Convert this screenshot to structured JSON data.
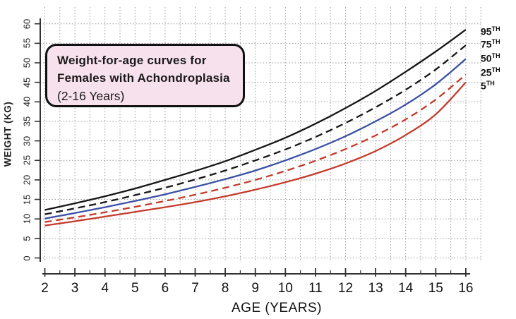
{
  "title_box": {
    "line1": "Weight-for-age curves for",
    "line2": "Females with Achondroplasia",
    "line3": "(2-16 Years)"
  },
  "colors": {
    "background": "#ffffff",
    "title_box_fill": "#f7e1ec",
    "title_box_border": "#111111",
    "grid": "#9a9a9a",
    "axis": "#333333",
    "black_curve": "#161616",
    "blue_curve": "#3a50a5",
    "red_curve": "#c43a2b",
    "text": "#1a1a1a"
  },
  "chart_data": {
    "type": "line",
    "title": "Weight-for-age curves for Females with Achondroplasia (2-16 Years)",
    "xlabel": "AGE (YEARS)",
    "ylabel": "WEIGHT (KG)",
    "xlim": [
      2,
      16
    ],
    "ylim": [
      0,
      60
    ],
    "x_ticks": [
      2,
      3,
      4,
      5,
      6,
      7,
      8,
      9,
      10,
      11,
      12,
      13,
      14,
      15,
      16
    ],
    "y_ticks": [
      0,
      5,
      10,
      15,
      20,
      25,
      30,
      35,
      40,
      45,
      50,
      55,
      60
    ],
    "grid": "dotted; vertical every 0.5 year, horizontal every 5 kg",
    "legend_position": "labels at right end of curves",
    "x": [
      2,
      3,
      4,
      5,
      6,
      7,
      8,
      9,
      10,
      11,
      12,
      13,
      14,
      15,
      16
    ],
    "series": [
      {
        "name": "95th percentile",
        "label": "95",
        "label_suffix": "TH",
        "color": "#161616",
        "style": "solid",
        "values": [
          12.3,
          14.0,
          15.8,
          17.8,
          20.0,
          22.3,
          24.8,
          27.7,
          30.8,
          34.4,
          38.4,
          42.8,
          47.7,
          52.9,
          58.5
        ]
      },
      {
        "name": "75th percentile",
        "label": "75",
        "label_suffix": "TH",
        "color": "#161616",
        "style": "dashed",
        "values": [
          11.2,
          12.7,
          14.3,
          16.1,
          18.0,
          20.1,
          22.4,
          25.0,
          27.8,
          31.0,
          34.6,
          38.6,
          43.1,
          48.3,
          54.5
        ]
      },
      {
        "name": "50th percentile",
        "label": "50",
        "label_suffix": "TH",
        "color": "#3a50a5",
        "style": "solid",
        "values": [
          10.1,
          11.5,
          13.0,
          14.6,
          16.3,
          18.2,
          20.2,
          22.4,
          25.0,
          27.9,
          31.2,
          35.0,
          39.3,
          44.5,
          51.0
        ]
      },
      {
        "name": "25th percentile",
        "label": "25",
        "label_suffix": "TH",
        "color": "#c43a2b",
        "style": "dashed",
        "values": [
          9.2,
          10.4,
          11.7,
          13.1,
          14.6,
          16.2,
          18.0,
          20.0,
          22.3,
          24.9,
          27.9,
          31.4,
          35.5,
          40.6,
          47.0
        ]
      },
      {
        "name": "5th percentile",
        "label": "5",
        "label_suffix": "TH",
        "color": "#c43a2b",
        "style": "solid",
        "values": [
          8.3,
          9.4,
          10.6,
          11.8,
          13.0,
          14.3,
          15.8,
          17.5,
          19.4,
          21.6,
          24.2,
          27.4,
          31.5,
          36.8,
          45.0
        ]
      }
    ]
  }
}
